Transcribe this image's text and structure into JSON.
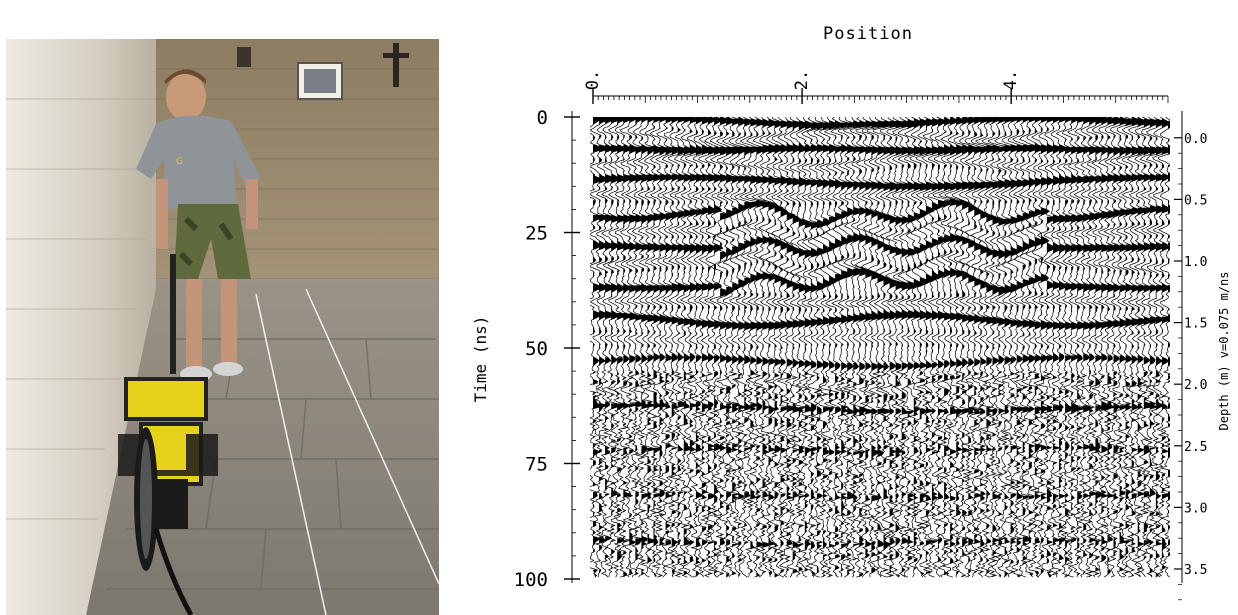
{
  "photo": {
    "description_icons": [
      "gpr-cart-icon",
      "cross-icon",
      "framed-picture-icon"
    ],
    "colors": {
      "wall": "#d9d3c6",
      "floor": "#8e8a80",
      "cart": "#e6d21a",
      "shirt": "#8f9499",
      "shorts": "#5f6b3e"
    }
  },
  "chart_data": {
    "type": "heatmap",
    "title": "Position",
    "xlabel": "",
    "ylabel": "Time (ns)",
    "y2label": "Depth (m) v=0.075 m/ns",
    "x_tick_labels": [
      "0.",
      "2.",
      "4."
    ],
    "x_ticks": [
      0,
      2,
      4
    ],
    "xlim": [
      0,
      5.5
    ],
    "y_tick_labels": [
      "0",
      "25",
      "50",
      "75",
      "100"
    ],
    "y_ticks": [
      0,
      25,
      50,
      75,
      100
    ],
    "ylim": [
      0,
      100
    ],
    "y2_tick_labels": [
      "0.0",
      "0.5",
      "1.0",
      "1.5",
      "2.0",
      "2.5",
      "3.0",
      "3.5"
    ],
    "y2_ticks": [
      0.0,
      0.5,
      1.0,
      1.5,
      2.0,
      2.5,
      3.0,
      3.5
    ],
    "velocity_m_per_ns": 0.075,
    "reflector_times_ns": [
      1,
      4,
      7,
      10,
      14,
      17,
      21,
      25,
      28,
      32,
      36,
      40,
      44,
      48,
      53,
      58,
      63,
      68,
      72,
      77,
      82,
      87,
      92,
      97
    ],
    "colors": {
      "ink": "#000000",
      "background": "#ffffff"
    }
  }
}
